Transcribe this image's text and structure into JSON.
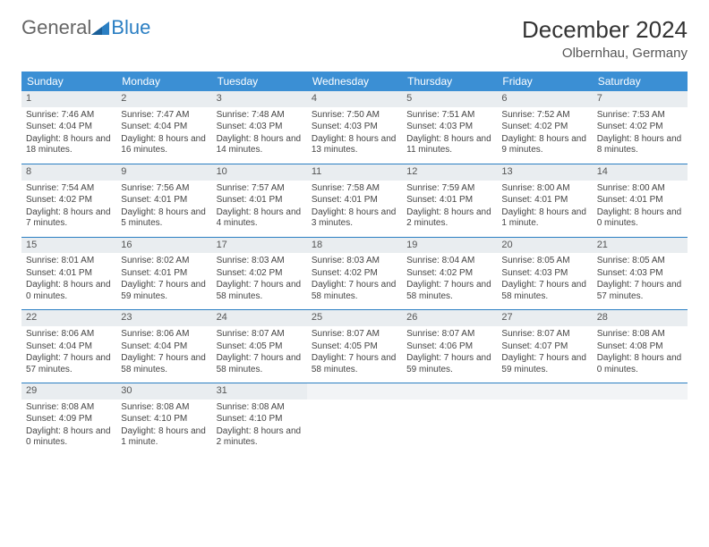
{
  "logo": {
    "text1": "General",
    "text2": "Blue",
    "accent_color": "#2b7fc3"
  },
  "title": "December 2024",
  "location": "Olbernhau, Germany",
  "colors": {
    "header_bg": "#3b8fd4",
    "header_text": "#ffffff",
    "daynum_bg": "#e9edf0",
    "row_divider": "#2b7fc3",
    "text": "#444444"
  },
  "weekdays": [
    "Sunday",
    "Monday",
    "Tuesday",
    "Wednesday",
    "Thursday",
    "Friday",
    "Saturday"
  ],
  "days": [
    {
      "n": 1,
      "sunrise": "7:46 AM",
      "sunset": "4:04 PM",
      "daylight": "8 hours and 18 minutes."
    },
    {
      "n": 2,
      "sunrise": "7:47 AM",
      "sunset": "4:04 PM",
      "daylight": "8 hours and 16 minutes."
    },
    {
      "n": 3,
      "sunrise": "7:48 AM",
      "sunset": "4:03 PM",
      "daylight": "8 hours and 14 minutes."
    },
    {
      "n": 4,
      "sunrise": "7:50 AM",
      "sunset": "4:03 PM",
      "daylight": "8 hours and 13 minutes."
    },
    {
      "n": 5,
      "sunrise": "7:51 AM",
      "sunset": "4:03 PM",
      "daylight": "8 hours and 11 minutes."
    },
    {
      "n": 6,
      "sunrise": "7:52 AM",
      "sunset": "4:02 PM",
      "daylight": "8 hours and 9 minutes."
    },
    {
      "n": 7,
      "sunrise": "7:53 AM",
      "sunset": "4:02 PM",
      "daylight": "8 hours and 8 minutes."
    },
    {
      "n": 8,
      "sunrise": "7:54 AM",
      "sunset": "4:02 PM",
      "daylight": "8 hours and 7 minutes."
    },
    {
      "n": 9,
      "sunrise": "7:56 AM",
      "sunset": "4:01 PM",
      "daylight": "8 hours and 5 minutes."
    },
    {
      "n": 10,
      "sunrise": "7:57 AM",
      "sunset": "4:01 PM",
      "daylight": "8 hours and 4 minutes."
    },
    {
      "n": 11,
      "sunrise": "7:58 AM",
      "sunset": "4:01 PM",
      "daylight": "8 hours and 3 minutes."
    },
    {
      "n": 12,
      "sunrise": "7:59 AM",
      "sunset": "4:01 PM",
      "daylight": "8 hours and 2 minutes."
    },
    {
      "n": 13,
      "sunrise": "8:00 AM",
      "sunset": "4:01 PM",
      "daylight": "8 hours and 1 minute."
    },
    {
      "n": 14,
      "sunrise": "8:00 AM",
      "sunset": "4:01 PM",
      "daylight": "8 hours and 0 minutes."
    },
    {
      "n": 15,
      "sunrise": "8:01 AM",
      "sunset": "4:01 PM",
      "daylight": "8 hours and 0 minutes."
    },
    {
      "n": 16,
      "sunrise": "8:02 AM",
      "sunset": "4:01 PM",
      "daylight": "7 hours and 59 minutes."
    },
    {
      "n": 17,
      "sunrise": "8:03 AM",
      "sunset": "4:02 PM",
      "daylight": "7 hours and 58 minutes."
    },
    {
      "n": 18,
      "sunrise": "8:03 AM",
      "sunset": "4:02 PM",
      "daylight": "7 hours and 58 minutes."
    },
    {
      "n": 19,
      "sunrise": "8:04 AM",
      "sunset": "4:02 PM",
      "daylight": "7 hours and 58 minutes."
    },
    {
      "n": 20,
      "sunrise": "8:05 AM",
      "sunset": "4:03 PM",
      "daylight": "7 hours and 58 minutes."
    },
    {
      "n": 21,
      "sunrise": "8:05 AM",
      "sunset": "4:03 PM",
      "daylight": "7 hours and 57 minutes."
    },
    {
      "n": 22,
      "sunrise": "8:06 AM",
      "sunset": "4:04 PM",
      "daylight": "7 hours and 57 minutes."
    },
    {
      "n": 23,
      "sunrise": "8:06 AM",
      "sunset": "4:04 PM",
      "daylight": "7 hours and 58 minutes."
    },
    {
      "n": 24,
      "sunrise": "8:07 AM",
      "sunset": "4:05 PM",
      "daylight": "7 hours and 58 minutes."
    },
    {
      "n": 25,
      "sunrise": "8:07 AM",
      "sunset": "4:05 PM",
      "daylight": "7 hours and 58 minutes."
    },
    {
      "n": 26,
      "sunrise": "8:07 AM",
      "sunset": "4:06 PM",
      "daylight": "7 hours and 59 minutes."
    },
    {
      "n": 27,
      "sunrise": "8:07 AM",
      "sunset": "4:07 PM",
      "daylight": "7 hours and 59 minutes."
    },
    {
      "n": 28,
      "sunrise": "8:08 AM",
      "sunset": "4:08 PM",
      "daylight": "8 hours and 0 minutes."
    },
    {
      "n": 29,
      "sunrise": "8:08 AM",
      "sunset": "4:09 PM",
      "daylight": "8 hours and 0 minutes."
    },
    {
      "n": 30,
      "sunrise": "8:08 AM",
      "sunset": "4:10 PM",
      "daylight": "8 hours and 1 minute."
    },
    {
      "n": 31,
      "sunrise": "8:08 AM",
      "sunset": "4:10 PM",
      "daylight": "8 hours and 2 minutes."
    }
  ],
  "labels": {
    "sunrise": "Sunrise: ",
    "sunset": "Sunset: ",
    "daylight": "Daylight: "
  },
  "start_weekday": 0,
  "total_cells": 35
}
